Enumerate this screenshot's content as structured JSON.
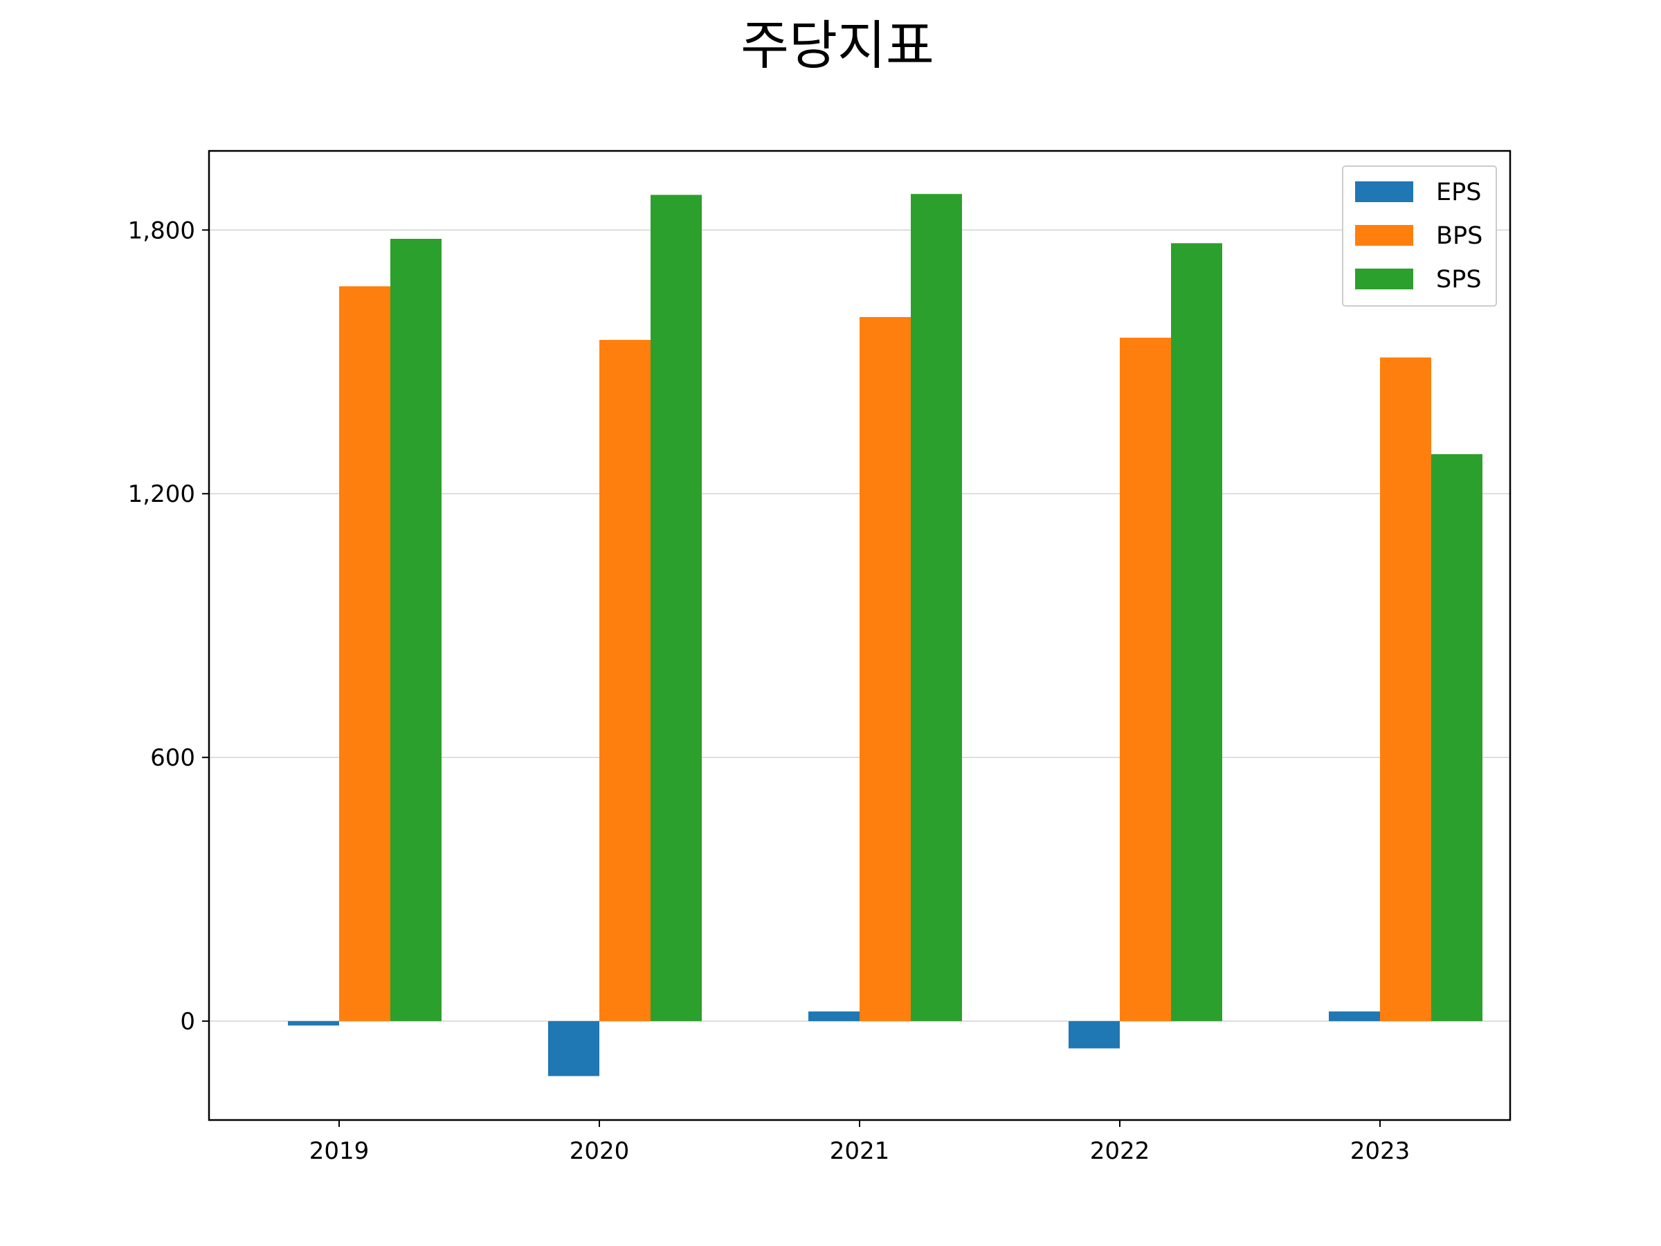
{
  "chart_data": {
    "type": "bar",
    "title": "주당지표",
    "xlabel": "",
    "ylabel": "",
    "categories": [
      "2019",
      "2020",
      "2021",
      "2022",
      "2023"
    ],
    "series": [
      {
        "name": "EPS",
        "color": "#1f77b4",
        "values": [
          -10,
          -125,
          22,
          -62,
          22
        ]
      },
      {
        "name": "BPS",
        "color": "#ff7f0e",
        "values": [
          1672,
          1550,
          1602,
          1555,
          1510
        ]
      },
      {
        "name": "SPS",
        "color": "#2ca02c",
        "values": [
          1780,
          1880,
          1882,
          1770,
          1290
        ]
      }
    ],
    "ylim": [
      -225,
      1980
    ],
    "yticks": [
      0,
      600,
      1200,
      1800
    ],
    "ytick_labels": [
      "0",
      "600",
      "1,200",
      "1,800"
    ],
    "grid": "horizontal",
    "legend_position": "top-right"
  }
}
